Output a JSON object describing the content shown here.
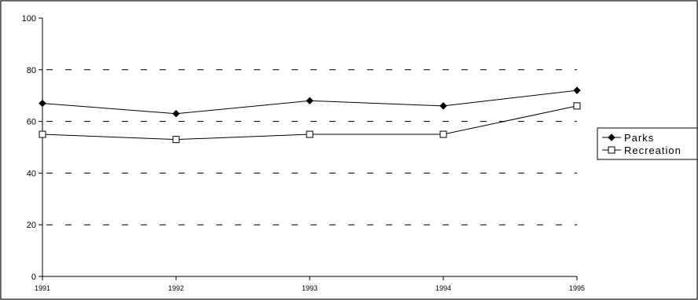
{
  "chart_data": {
    "type": "line",
    "title": "",
    "xlabel": "",
    "ylabel": "",
    "categories": [
      "1991",
      "1992",
      "1993",
      "1994",
      "1995"
    ],
    "ylim": [
      0,
      100
    ],
    "yticks": [
      "0",
      "20",
      "40",
      "60",
      "80",
      "100"
    ],
    "grid": "dashed horizontal",
    "legend_position": "right",
    "series": [
      {
        "name": "Parks",
        "marker": "filled-diamond",
        "color": "#000000",
        "values": [
          67,
          63,
          68,
          66,
          72
        ]
      },
      {
        "name": "Recreation",
        "marker": "open-square",
        "color": "#000000",
        "values": [
          55,
          53,
          55,
          55,
          66
        ]
      }
    ]
  }
}
